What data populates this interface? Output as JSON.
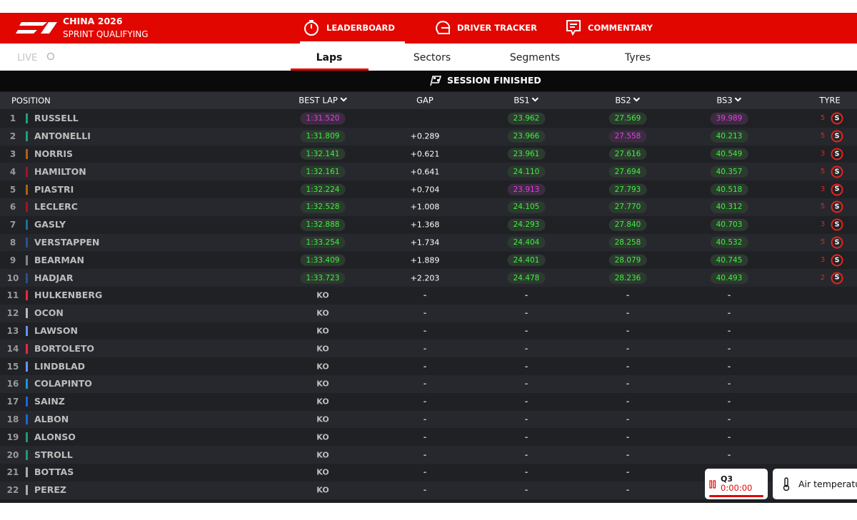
{
  "header": {
    "title": "CHINA 2026",
    "subtitle": "SPRINT QUALIFYING",
    "tabs": [
      "LEADERBOARD",
      "DRIVER TRACKER",
      "COMMENTARY"
    ],
    "active_tab": 0
  },
  "subnav": {
    "live": "LIVE",
    "tabs": [
      "Laps",
      "Sectors",
      "Segments",
      "Tyres"
    ],
    "active_tab": 0
  },
  "banner": "SESSION FINISHED",
  "table": {
    "columns": {
      "position": "POSITION",
      "best_lap": "BEST LAP",
      "gap": "GAP",
      "bs1": "BS1",
      "bs2": "BS2",
      "bs3": "BS3",
      "tyre": "TYRE"
    },
    "sortable": [
      "best_lap",
      "bs1",
      "bs2",
      "bs3"
    ],
    "rows": [
      {
        "position": "1",
        "driver": "RUSSELL",
        "team_color": "#1f9e82",
        "best_lap": "1:31.520",
        "bs1": "23.962",
        "bs2": "27.569",
        "bs3": "39.989",
        "tyre_laps": "5",
        "tyre": "S",
        "purple": [
          "best_lap",
          "bs3"
        ]
      },
      {
        "position": "2",
        "driver": "ANTONELLI",
        "team_color": "#1f9e82",
        "best_lap": "1:31.809",
        "gap": "+0.289",
        "bs1": "23.966",
        "bs2": "27.558",
        "bs3": "40.213",
        "tyre_laps": "5",
        "tyre": "S",
        "purple": [
          "bs2"
        ]
      },
      {
        "position": "3",
        "driver": "NORRIS",
        "team_color": "#b06012",
        "best_lap": "1:32.141",
        "gap": "+0.621",
        "bs1": "23.961",
        "bs2": "27.616",
        "bs3": "40.549",
        "tyre_laps": "3",
        "tyre": "S"
      },
      {
        "position": "4",
        "driver": "HAMILTON",
        "team_color": "#a3122a",
        "best_lap": "1:32.161",
        "gap": "+0.641",
        "bs1": "24.110",
        "bs2": "27.694",
        "bs3": "40.357",
        "tyre_laps": "5",
        "tyre": "S"
      },
      {
        "position": "5",
        "driver": "PIASTRI",
        "team_color": "#b06012",
        "best_lap": "1:32.224",
        "gap": "+0.704",
        "bs1": "23.913",
        "bs2": "27.793",
        "bs3": "40.518",
        "tyre_laps": "3",
        "tyre": "S",
        "purple": [
          "bs1"
        ]
      },
      {
        "position": "6",
        "driver": "LECLERC",
        "team_color": "#a3122a",
        "best_lap": "1:32.528",
        "gap": "+1.008",
        "bs1": "24.105",
        "bs2": "27.770",
        "bs3": "40.312",
        "tyre_laps": "5",
        "tyre": "S"
      },
      {
        "position": "7",
        "driver": "GASLY",
        "team_color": "#1a6f9e",
        "best_lap": "1:32.888",
        "gap": "+1.368",
        "bs1": "24.293",
        "bs2": "27.840",
        "bs3": "40.703",
        "tyre_laps": "3",
        "tyre": "S"
      },
      {
        "position": "8",
        "driver": "VERSTAPPEN",
        "team_color": "#2a508f",
        "best_lap": "1:33.254",
        "gap": "+1.734",
        "bs1": "24.404",
        "bs2": "28.258",
        "bs3": "40.532",
        "tyre_laps": "5",
        "tyre": "S"
      },
      {
        "position": "9",
        "driver": "BEARMAN",
        "team_color": "#808488",
        "best_lap": "1:33.409",
        "gap": "+1.889",
        "bs1": "24.401",
        "bs2": "28.079",
        "bs3": "40.745",
        "tyre_laps": "3",
        "tyre": "S"
      },
      {
        "position": "10",
        "driver": "HADJAR",
        "team_color": "#2a508f",
        "best_lap": "1:33.723",
        "gap": "+2.203",
        "bs1": "24.478",
        "bs2": "28.236",
        "bs3": "40.493",
        "tyre_laps": "2",
        "tyre": "S"
      },
      {
        "position": "11",
        "driver": "HULKENBERG",
        "team_color": "#f0243c",
        "best_lap": "KO",
        "gap": "-",
        "bs1": "-",
        "bs2": "-",
        "bs3": "-"
      },
      {
        "position": "12",
        "driver": "OCON",
        "team_color": "#b6babd",
        "best_lap": "KO",
        "gap": "-",
        "bs1": "-",
        "bs2": "-",
        "bs3": "-"
      },
      {
        "position": "13",
        "driver": "LAWSON",
        "team_color": "#6692ff",
        "best_lap": "KO",
        "gap": "-",
        "bs1": "-",
        "bs2": "-",
        "bs3": "-"
      },
      {
        "position": "14",
        "driver": "BORTOLETO",
        "team_color": "#f0243c",
        "best_lap": "KO",
        "gap": "-",
        "bs1": "-",
        "bs2": "-",
        "bs3": "-"
      },
      {
        "position": "15",
        "driver": "LINDBLAD",
        "team_color": "#6692ff",
        "best_lap": "KO",
        "gap": "-",
        "bs1": "-",
        "bs2": "-",
        "bs3": "-"
      },
      {
        "position": "16",
        "driver": "COLAPINTO",
        "team_color": "#2293d1",
        "best_lap": "KO",
        "gap": "-",
        "bs1": "-",
        "bs2": "-",
        "bs3": "-"
      },
      {
        "position": "17",
        "driver": "SAINZ",
        "team_color": "#1868db",
        "best_lap": "KO",
        "gap": "-",
        "bs1": "-",
        "bs2": "-",
        "bs3": "-"
      },
      {
        "position": "18",
        "driver": "ALBON",
        "team_color": "#1868db",
        "best_lap": "KO",
        "gap": "-",
        "bs1": "-",
        "bs2": "-",
        "bs3": "-"
      },
      {
        "position": "19",
        "driver": "ALONSO",
        "team_color": "#229971",
        "best_lap": "KO",
        "gap": "-",
        "bs1": "-",
        "bs2": "-",
        "bs3": "-"
      },
      {
        "position": "20",
        "driver": "STROLL",
        "team_color": "#229971",
        "best_lap": "KO",
        "gap": "-",
        "bs1": "-",
        "bs2": "-",
        "bs3": "-"
      },
      {
        "position": "21",
        "driver": "BOTTAS",
        "team_color": "#aaaaaa",
        "best_lap": "KO",
        "gap": "-",
        "bs1": "-",
        "bs2": "-",
        "bs3": "-"
      },
      {
        "position": "22",
        "driver": "PEREZ",
        "team_color": "#aaaaaa",
        "best_lap": "KO",
        "gap": "-",
        "bs1": "-",
        "bs2": "-",
        "bs3": "-"
      }
    ]
  },
  "widgets": {
    "session": "Q3",
    "clock": "0:00:00",
    "weather": "Air temperature"
  }
}
